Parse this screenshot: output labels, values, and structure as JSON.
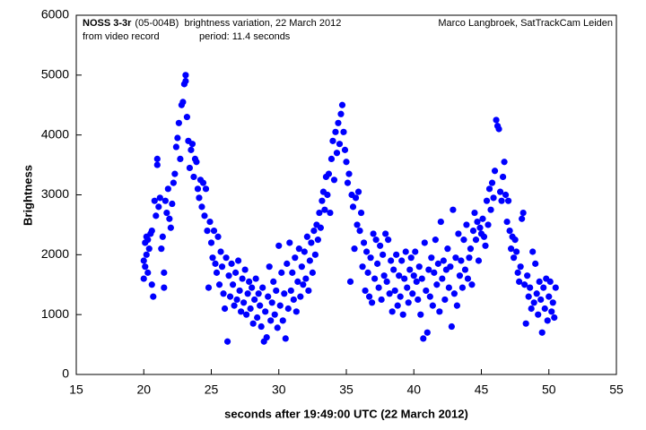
{
  "chart_data": {
    "type": "scatter",
    "annotations": [
      "NOSS 3-3r",
      "(05-004B)  brightness variation, 22 March 2012",
      "from video record",
      "period: 11.4 seconds",
      "Marco Langbroek, SatTrackCam Leiden"
    ],
    "x_label": "seconds after 19:49:00 UTC (22 March 2012)",
    "y_label": "Brightness",
    "xlim": [
      15,
      55
    ],
    "ylim": [
      0,
      6000
    ],
    "xticks": [
      15,
      20,
      25,
      30,
      35,
      40,
      45,
      50,
      55
    ],
    "yticks": [
      0,
      1000,
      2000,
      3000,
      4000,
      5000,
      6000
    ],
    "series": [
      {
        "color": "#0000ff",
        "x": [
          20.0,
          20.0,
          20.1,
          20.1,
          20.2,
          20.2,
          20.3,
          20.3,
          20.4,
          20.5,
          20.6,
          20.6,
          20.7,
          20.8,
          20.9,
          21.0,
          21.0,
          21.1,
          21.2,
          21.3,
          21.4,
          21.5,
          21.5,
          21.6,
          21.7,
          21.8,
          21.9,
          22.0,
          22.1,
          22.2,
          22.3,
          22.4,
          22.5,
          22.6,
          22.7,
          22.8,
          22.9,
          23.0,
          23.1,
          23.1,
          23.2,
          23.3,
          23.4,
          23.5,
          23.6,
          23.7,
          23.8,
          23.9,
          24.0,
          24.1,
          24.2,
          24.3,
          24.4,
          24.5,
          24.6,
          24.7,
          24.8,
          24.9,
          25.0,
          25.1,
          25.2,
          25.3,
          25.4,
          25.5,
          25.6,
          25.7,
          25.8,
          25.9,
          26.0,
          26.1,
          26.2,
          26.3,
          26.4,
          26.5,
          26.6,
          26.7,
          26.8,
          26.9,
          27.0,
          27.1,
          27.2,
          27.3,
          27.4,
          27.5,
          27.6,
          27.7,
          27.8,
          27.9,
          28.0,
          28.1,
          28.2,
          28.3,
          28.4,
          28.5,
          28.6,
          28.7,
          28.8,
          28.9,
          29.0,
          29.1,
          29.2,
          29.3,
          29.4,
          29.5,
          29.6,
          29.7,
          29.8,
          29.9,
          30.0,
          30.1,
          30.2,
          30.3,
          30.4,
          30.5,
          30.6,
          30.7,
          30.8,
          30.9,
          31.0,
          31.1,
          31.2,
          31.3,
          31.4,
          31.5,
          31.6,
          31.7,
          31.8,
          31.9,
          32.0,
          32.1,
          32.2,
          32.3,
          32.4,
          32.5,
          32.6,
          32.7,
          32.8,
          32.9,
          33.0,
          33.1,
          33.2,
          33.3,
          33.4,
          33.5,
          33.6,
          33.7,
          33.8,
          33.9,
          34.0,
          34.1,
          34.2,
          34.3,
          34.4,
          34.5,
          34.6,
          34.7,
          34.8,
          34.9,
          35.0,
          35.1,
          35.2,
          35.3,
          35.4,
          35.5,
          35.6,
          35.7,
          35.8,
          35.9,
          36.0,
          36.1,
          36.2,
          36.3,
          36.4,
          36.5,
          36.6,
          36.7,
          36.8,
          36.9,
          37.0,
          37.1,
          37.2,
          37.3,
          37.4,
          37.5,
          37.6,
          37.7,
          37.8,
          37.9,
          38.0,
          38.1,
          38.2,
          38.3,
          38.4,
          38.5,
          38.6,
          38.7,
          38.8,
          38.9,
          39.0,
          39.1,
          39.2,
          39.3,
          39.4,
          39.5,
          39.6,
          39.7,
          39.8,
          39.9,
          40.0,
          40.1,
          40.2,
          40.3,
          40.4,
          40.5,
          40.6,
          40.7,
          40.8,
          40.9,
          41.0,
          41.1,
          41.2,
          41.3,
          41.4,
          41.5,
          41.6,
          41.7,
          41.8,
          41.9,
          42.0,
          42.1,
          42.2,
          42.3,
          42.4,
          42.5,
          42.6,
          42.7,
          42.8,
          42.9,
          43.0,
          43.1,
          43.2,
          43.3,
          43.4,
          43.5,
          43.6,
          43.7,
          43.8,
          43.9,
          44.0,
          44.1,
          44.2,
          44.3,
          44.4,
          44.5,
          44.6,
          44.7,
          44.8,
          44.9,
          45.0,
          45.1,
          45.2,
          45.3,
          45.4,
          45.5,
          45.6,
          45.7,
          45.8,
          45.9,
          46.0,
          46.1,
          46.2,
          46.3,
          46.4,
          46.5,
          46.6,
          46.7,
          46.8,
          46.9,
          47.0,
          47.1,
          47.2,
          47.3,
          47.4,
          47.5,
          47.6,
          47.7,
          47.8,
          47.9,
          48.0,
          48.1,
          48.2,
          48.3,
          48.4,
          48.5,
          48.6,
          48.7,
          48.8,
          48.9,
          49.0,
          49.1,
          49.2,
          49.3,
          49.4,
          49.5,
          49.6,
          49.7,
          49.8,
          49.9,
          50.0,
          50.1,
          50.2,
          50.3,
          50.4,
          50.5
        ],
        "values": [
          1600,
          1900,
          2200,
          1800,
          2300,
          2000,
          1700,
          2250,
          2100,
          2350,
          1500,
          2400,
          1300,
          2900,
          2650,
          3600,
          3500,
          2800,
          2950,
          2100,
          2300,
          1700,
          1450,
          2900,
          2700,
          3100,
          2600,
          2450,
          2850,
          3200,
          3350,
          3800,
          3950,
          4200,
          3600,
          4500,
          4550,
          4850,
          5000,
          4900,
          4300,
          3900,
          3450,
          3750,
          3850,
          3300,
          3600,
          3550,
          3100,
          2950,
          3250,
          2800,
          3200,
          2650,
          3100,
          2400,
          1450,
          2550,
          2200,
          1950,
          2400,
          1850,
          1700,
          2300,
          1500,
          2050,
          1800,
          1350,
          1100,
          1950,
          550,
          1650,
          1300,
          1850,
          1500,
          1150,
          1700,
          1250,
          1900,
          1400,
          1050,
          1600,
          1200,
          1750,
          1000,
          1350,
          1550,
          1100,
          1450,
          850,
          1250,
          1600,
          950,
          1350,
          1150,
          800,
          1450,
          550,
          1050,
          620,
          1300,
          1800,
          900,
          1200,
          1550,
          1000,
          1400,
          780,
          2150,
          1150,
          1700,
          900,
          1350,
          600,
          1850,
          1100,
          2200,
          1400,
          1700,
          1250,
          1950,
          1050,
          1550,
          2100,
          1300,
          1800,
          1500,
          2050,
          1600,
          2300,
          1400,
          1900,
          2200,
          1700,
          2400,
          2000,
          2500,
          2250,
          2700,
          2450,
          2900,
          3050,
          2750,
          3300,
          3000,
          3350,
          2700,
          3600,
          3900,
          3250,
          4050,
          3700,
          4200,
          3850,
          4350,
          4500,
          4050,
          3750,
          3550,
          3200,
          3350,
          1550,
          3000,
          2800,
          2100,
          2950,
          2500,
          3050,
          2400,
          2700,
          1800,
          2200,
          1400,
          2050,
          1700,
          1300,
          1950,
          1200,
          2350,
          1600,
          2250,
          1850,
          1450,
          2150,
          1250,
          2000,
          1650,
          2350,
          1550,
          2250,
          1350,
          1900,
          1050,
          1750,
          1400,
          2000,
          1150,
          1650,
          1300,
          1900,
          1000,
          1600,
          2050,
          1450,
          1200,
          1750,
          1950,
          1350,
          1650,
          2050,
          1550,
          1250,
          1800,
          1000,
          1600,
          600,
          2200,
          1400,
          700,
          1750,
          1300,
          1950,
          1150,
          1700,
          2250,
          1500,
          1850,
          1050,
          2550,
          1600,
          1900,
          1250,
          1750,
          2100,
          1450,
          1800,
          800,
          2750,
          1350,
          1950,
          1150,
          2350,
          1650,
          1900,
          1450,
          2250,
          1750,
          2500,
          1600,
          1950,
          2100,
          1500,
          2400,
          2700,
          2250,
          2550,
          1900,
          2450,
          2350,
          2600,
          2300,
          2150,
          2900,
          2500,
          3100,
          2750,
          3200,
          2950,
          3400,
          4250,
          4150,
          4100,
          3050,
          2900,
          3300,
          3550,
          3000,
          2550,
          2900,
          2400,
          2100,
          2300,
          1950,
          2250,
          2050,
          1700,
          1550,
          1800,
          2600,
          2700,
          1500,
          850,
          1650,
          1300,
          1450,
          1100,
          2050,
          1200,
          1850,
          1350,
          1000,
          1550,
          1250,
          700,
          1450,
          1100,
          1600,
          900,
          1300,
          1550,
          1050,
          1200,
          950,
          1450
        ]
      }
    ]
  }
}
